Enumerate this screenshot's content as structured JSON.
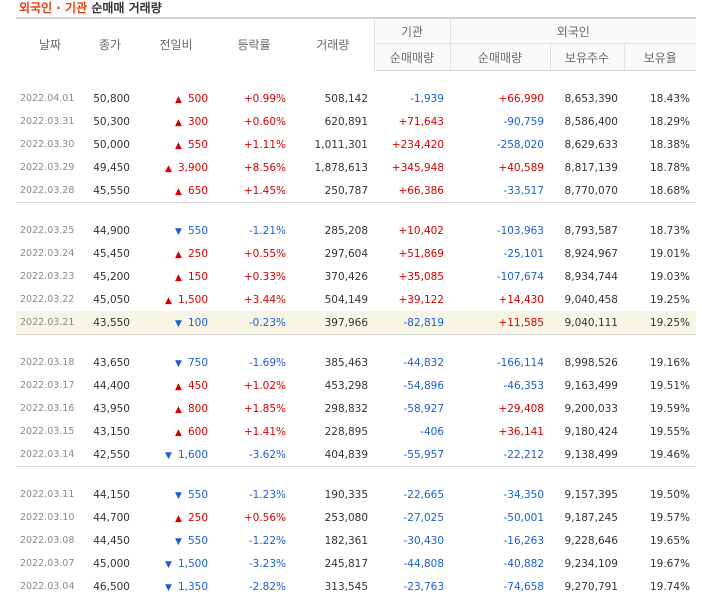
{
  "title": {
    "part1": "외국인 · 기관",
    "part2": "순매매 거래량"
  },
  "headers": {
    "date": "날짜",
    "close": "종가",
    "change": "전일비",
    "rate": "등락률",
    "volume": "거래량",
    "institution": "기관",
    "foreign": "외국인",
    "inst_net": "순매매량",
    "foreign_net": "순매매량",
    "holdings": "보유주수",
    "ratio": "보유율"
  },
  "colors": {
    "up": "#d60000",
    "down": "#1b5fd1",
    "title_accent": "#e8400c"
  },
  "groups": [
    [
      {
        "date": "2022.04.01",
        "close": "50,800",
        "dir": "up",
        "change": "500",
        "rate": "+0.99%",
        "volume": "508,142",
        "inst": "-1,939",
        "foreign_net": "+66,990",
        "holdings": "8,653,390",
        "ratio": "18.43%"
      },
      {
        "date": "2022.03.31",
        "close": "50,300",
        "dir": "up",
        "change": "300",
        "rate": "+0.60%",
        "volume": "620,891",
        "inst": "+71,643",
        "foreign_net": "-90,759",
        "holdings": "8,586,400",
        "ratio": "18.29%"
      },
      {
        "date": "2022.03.30",
        "close": "50,000",
        "dir": "up",
        "change": "550",
        "rate": "+1.11%",
        "volume": "1,011,301",
        "inst": "+234,420",
        "foreign_net": "-258,020",
        "holdings": "8,629,633",
        "ratio": "18.38%"
      },
      {
        "date": "2022.03.29",
        "close": "49,450",
        "dir": "up",
        "change": "3,900",
        "rate": "+8.56%",
        "volume": "1,878,613",
        "inst": "+345,948",
        "foreign_net": "+40,589",
        "holdings": "8,817,139",
        "ratio": "18.78%"
      },
      {
        "date": "2022.03.28",
        "close": "45,550",
        "dir": "up",
        "change": "650",
        "rate": "+1.45%",
        "volume": "250,787",
        "inst": "+66,386",
        "foreign_net": "-33,517",
        "holdings": "8,770,070",
        "ratio": "18.68%"
      }
    ],
    [
      {
        "date": "2022.03.25",
        "close": "44,900",
        "dir": "down",
        "change": "550",
        "rate": "-1.21%",
        "volume": "285,208",
        "inst": "+10,402",
        "foreign_net": "-103,963",
        "holdings": "8,793,587",
        "ratio": "18.73%"
      },
      {
        "date": "2022.03.24",
        "close": "45,450",
        "dir": "up",
        "change": "250",
        "rate": "+0.55%",
        "volume": "297,604",
        "inst": "+51,869",
        "foreign_net": "-25,101",
        "holdings": "8,924,967",
        "ratio": "19.01%"
      },
      {
        "date": "2022.03.23",
        "close": "45,200",
        "dir": "up",
        "change": "150",
        "rate": "+0.33%",
        "volume": "370,426",
        "inst": "+35,085",
        "foreign_net": "-107,674",
        "holdings": "8,934,744",
        "ratio": "19.03%"
      },
      {
        "date": "2022.03.22",
        "close": "45,050",
        "dir": "up",
        "change": "1,500",
        "rate": "+3.44%",
        "volume": "504,149",
        "inst": "+39,122",
        "foreign_net": "+14,430",
        "holdings": "9,040,458",
        "ratio": "19.25%"
      },
      {
        "date": "2022.03.21",
        "close": "43,550",
        "dir": "down",
        "change": "100",
        "rate": "-0.23%",
        "volume": "397,966",
        "inst": "-82,819",
        "foreign_net": "+11,585",
        "holdings": "9,040,111",
        "ratio": "19.25%",
        "highlight": true
      }
    ],
    [
      {
        "date": "2022.03.18",
        "close": "43,650",
        "dir": "down",
        "change": "750",
        "rate": "-1.69%",
        "volume": "385,463",
        "inst": "-44,832",
        "foreign_net": "-166,114",
        "holdings": "8,998,526",
        "ratio": "19.16%"
      },
      {
        "date": "2022.03.17",
        "close": "44,400",
        "dir": "up",
        "change": "450",
        "rate": "+1.02%",
        "volume": "453,298",
        "inst": "-54,896",
        "foreign_net": "-46,353",
        "holdings": "9,163,499",
        "ratio": "19.51%"
      },
      {
        "date": "2022.03.16",
        "close": "43,950",
        "dir": "up",
        "change": "800",
        "rate": "+1.85%",
        "volume": "298,832",
        "inst": "-58,927",
        "foreign_net": "+29,408",
        "holdings": "9,200,033",
        "ratio": "19.59%"
      },
      {
        "date": "2022.03.15",
        "close": "43,150",
        "dir": "up",
        "change": "600",
        "rate": "+1.41%",
        "volume": "228,895",
        "inst": "-406",
        "foreign_net": "+36,141",
        "holdings": "9,180,424",
        "ratio": "19.55%"
      },
      {
        "date": "2022.03.14",
        "close": "42,550",
        "dir": "down",
        "change": "1,600",
        "rate": "-3.62%",
        "volume": "404,839",
        "inst": "-55,957",
        "foreign_net": "-22,212",
        "holdings": "9,138,499",
        "ratio": "19.46%"
      }
    ],
    [
      {
        "date": "2022.03.11",
        "close": "44,150",
        "dir": "down",
        "change": "550",
        "rate": "-1.23%",
        "volume": "190,335",
        "inst": "-22,665",
        "foreign_net": "-34,350",
        "holdings": "9,157,395",
        "ratio": "19.50%"
      },
      {
        "date": "2022.03.10",
        "close": "44,700",
        "dir": "up",
        "change": "250",
        "rate": "+0.56%",
        "volume": "253,080",
        "inst": "-27,025",
        "foreign_net": "-50,001",
        "holdings": "9,187,245",
        "ratio": "19.57%"
      },
      {
        "date": "2022.03.08",
        "close": "44,450",
        "dir": "down",
        "change": "550",
        "rate": "-1.22%",
        "volume": "182,361",
        "inst": "-30,430",
        "foreign_net": "-16,263",
        "holdings": "9,228,646",
        "ratio": "19.65%"
      },
      {
        "date": "2022.03.07",
        "close": "45,000",
        "dir": "down",
        "change": "1,500",
        "rate": "-3.23%",
        "volume": "245,817",
        "inst": "-44,808",
        "foreign_net": "-40,882",
        "holdings": "9,234,109",
        "ratio": "19.67%"
      },
      {
        "date": "2022.03.04",
        "close": "46,500",
        "dir": "down",
        "change": "1,350",
        "rate": "-2.82%",
        "volume": "313,545",
        "inst": "-23,763",
        "foreign_net": "-74,658",
        "holdings": "9,270,791",
        "ratio": "19.74%"
      }
    ]
  ]
}
